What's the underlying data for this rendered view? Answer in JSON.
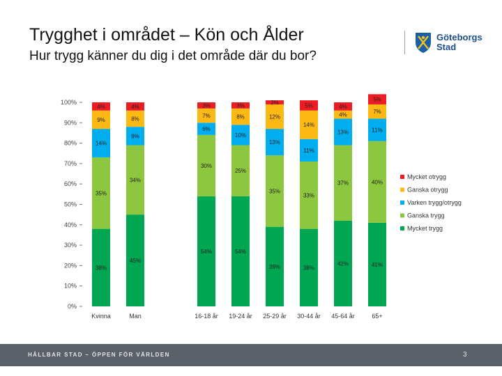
{
  "header": {
    "title": "Trygghet i området – Kön och Ålder",
    "subtitle": "Hur trygg känner du dig i det område där du bor?"
  },
  "logo": {
    "line1": "Göteborgs",
    "line2": "Stad",
    "icon": "city-emblem-icon"
  },
  "footer": {
    "text": "HÅLLBAR STAD – ÖPPEN FÖR VÄRLDEN",
    "page": "3"
  },
  "chart_data": {
    "type": "bar",
    "stacked": true,
    "categories": [
      "Kvinna",
      "Man",
      "16-18 år",
      "19-24 år",
      "25-29 år",
      "30-44 år",
      "45-64 år",
      "65+"
    ],
    "group_gap_after_index": 1,
    "y_ticks": [
      "0%",
      "10%",
      "20%",
      "30%",
      "40%",
      "50%",
      "60%",
      "70%",
      "80%",
      "90%",
      "100%"
    ],
    "ylim": [
      0,
      100
    ],
    "grid": false,
    "legend_position": "right",
    "series": [
      {
        "name": "Mycket trygg",
        "color": "#00a651",
        "values": [
          38,
          45,
          54,
          54,
          39,
          38,
          42,
          41
        ],
        "labels": [
          "38%",
          "45%",
          "54%",
          "54%",
          "39%",
          "38%",
          "42%",
          "41%"
        ]
      },
      {
        "name": "Ganska trygg",
        "color": "#8dc63f",
        "values": [
          35,
          34,
          30,
          25,
          35,
          33,
          37,
          40
        ],
        "labels": [
          "35%",
          "34%",
          "30%",
          "25%",
          "35%",
          "33%",
          "37%",
          "40%"
        ]
      },
      {
        "name": "Varken trygg/otrygg",
        "color": "#00aeef",
        "values": [
          14,
          9,
          6,
          10,
          13,
          11,
          13,
          11
        ],
        "labels": [
          "14%",
          "9%",
          "6%",
          "10%",
          "13%",
          "11%",
          "13%",
          "11%"
        ]
      },
      {
        "name": "Ganska otrygg",
        "color": "#fdb913",
        "values": [
          9,
          8,
          7,
          8,
          12,
          14,
          4,
          7
        ],
        "labels": [
          "9%",
          "8%",
          "7%",
          "8%",
          "12%",
          "14%",
          "4%",
          "7%"
        ]
      },
      {
        "name": "Mycket otrygg",
        "color": "#ed1c24",
        "values": [
          4,
          4,
          3,
          3,
          2,
          5,
          4,
          5
        ],
        "labels": [
          "4%",
          "4%",
          "3%",
          "3%",
          "2%",
          "5%",
          "4%",
          "5%"
        ]
      }
    ]
  }
}
